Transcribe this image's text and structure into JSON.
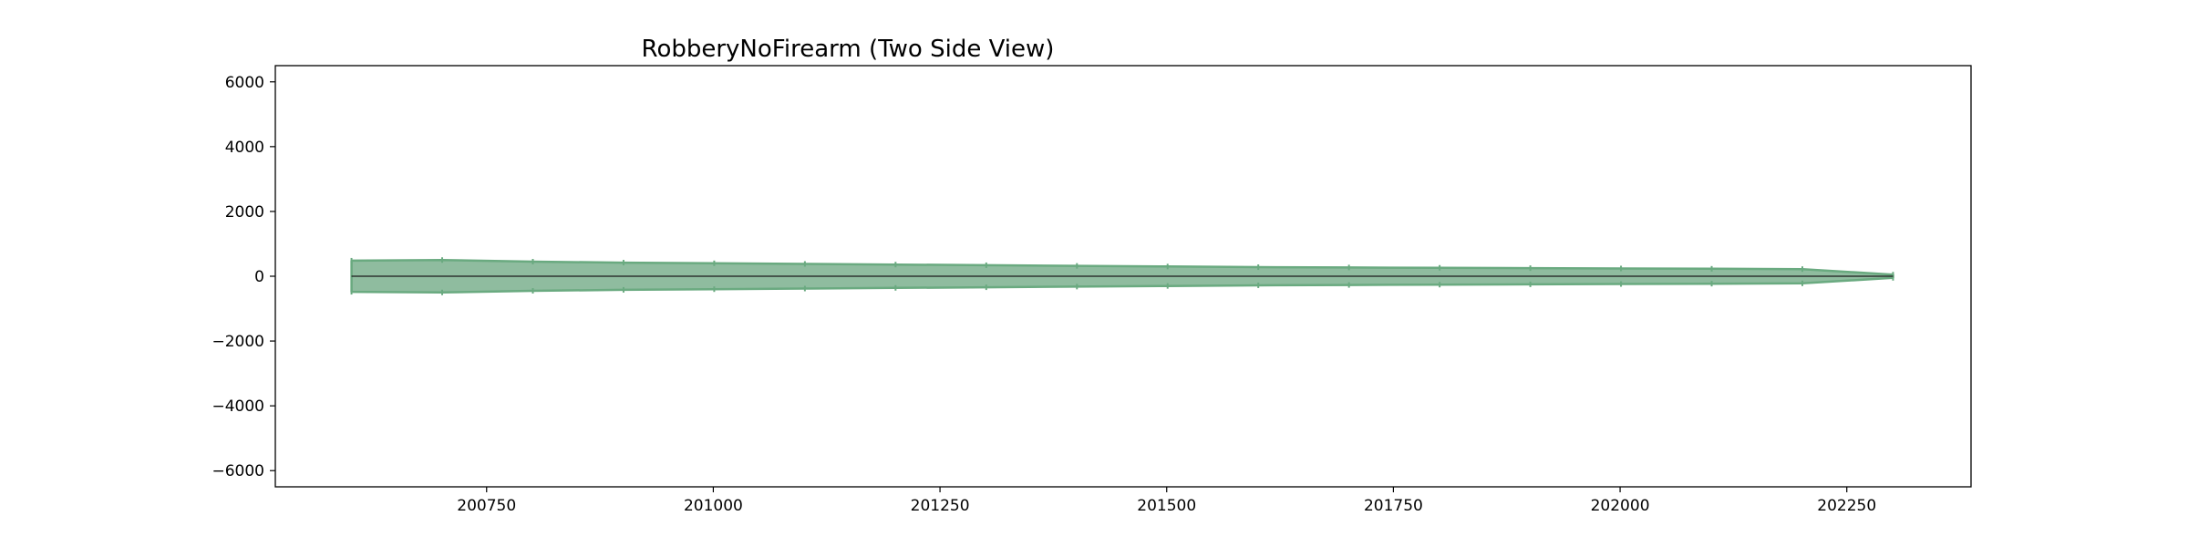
{
  "chart_data": {
    "type": "area",
    "title": "RobberyNoFirearm (Two Side View)",
    "xlabel": "",
    "ylabel": "",
    "xlim": [
      200517,
      202387
    ],
    "ylim": [
      -6500,
      6500
    ],
    "x_ticks": [
      200750,
      201000,
      201250,
      201500,
      201750,
      202000,
      202250
    ],
    "x_tick_labels": [
      "200750",
      "201000",
      "201250",
      "201500",
      "201750",
      "202000",
      "202250"
    ],
    "y_ticks": [
      6000,
      4000,
      2000,
      0,
      -2000,
      -4000,
      -6000
    ],
    "y_tick_labels": [
      "6000",
      "4000",
      "2000",
      "0",
      "−2000",
      "−4000",
      "−6000"
    ],
    "grid": false,
    "fill_color": "#8fbc9f",
    "edge_color": "#6aaa80",
    "mirrored": true,
    "series": [
      {
        "x": [
          200601,
          200701,
          200801,
          200901,
          201001,
          201101,
          201201,
          201301,
          201401,
          201501,
          201601,
          201701,
          201801,
          201901,
          202001,
          202101,
          202201,
          202301
        ],
        "values": [
          480,
          500,
          450,
          420,
          400,
          380,
          360,
          340,
          320,
          300,
          280,
          270,
          260,
          250,
          240,
          230,
          220,
          50
        ]
      }
    ]
  }
}
